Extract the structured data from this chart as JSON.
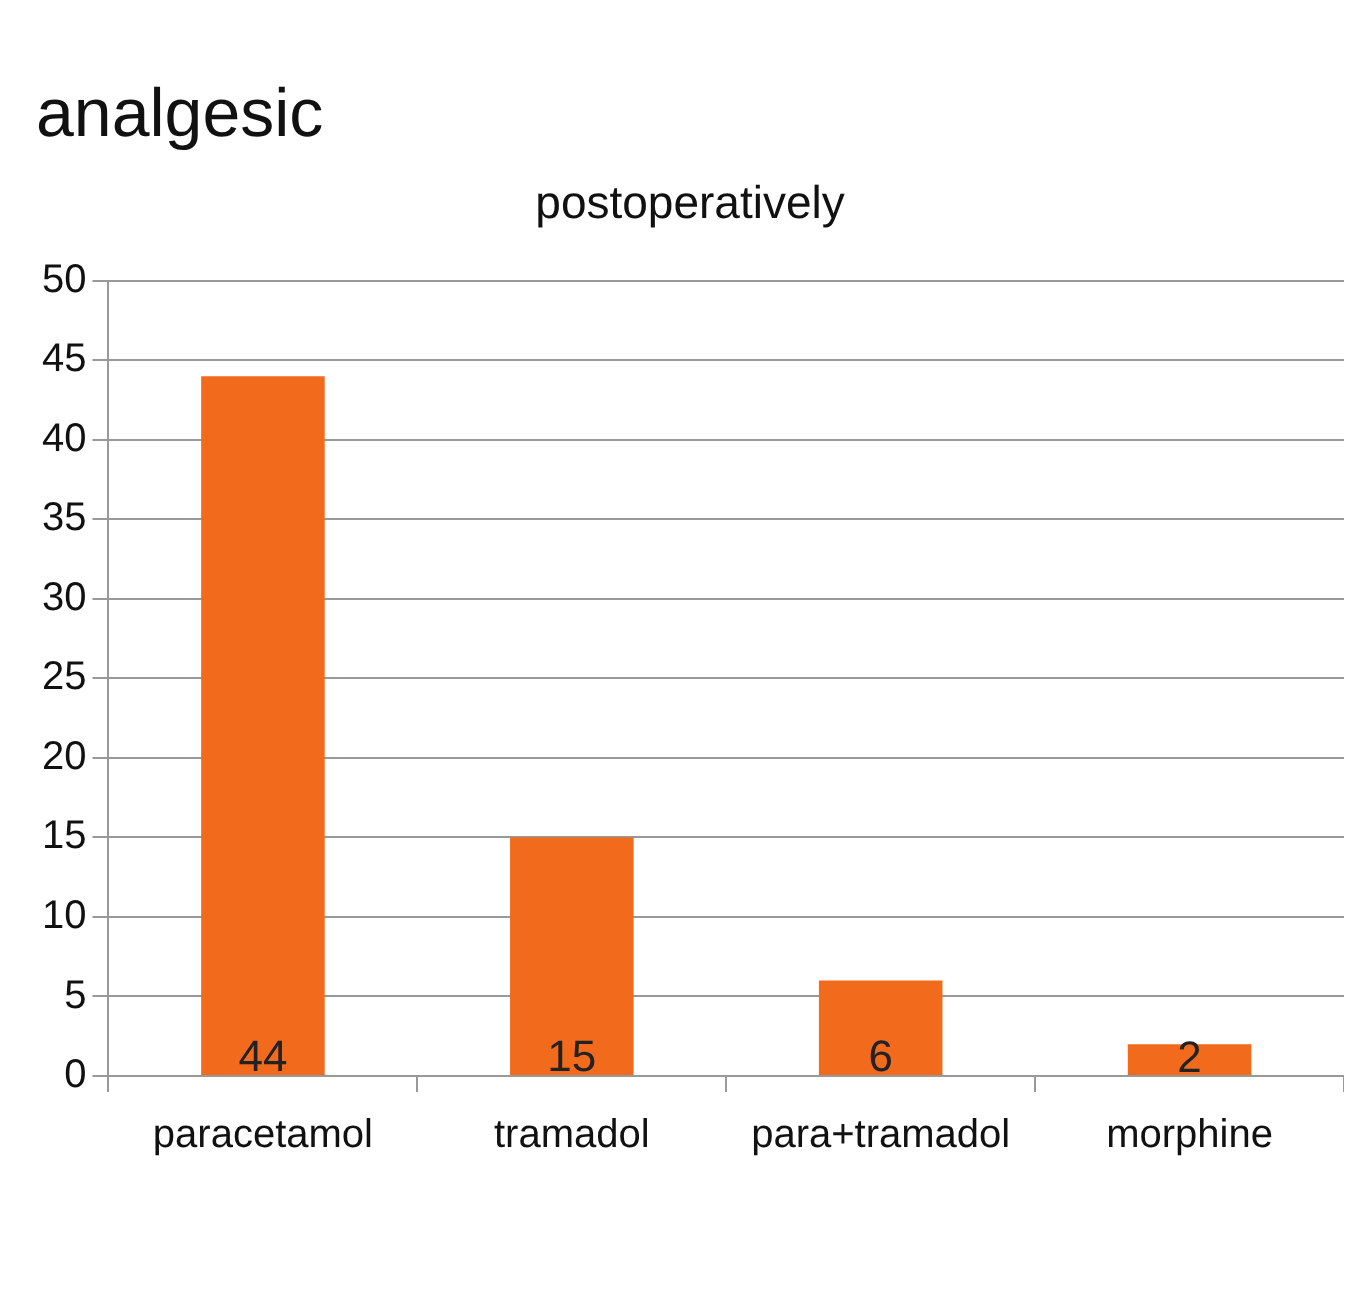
{
  "chart_data": {
    "type": "bar",
    "title": "analgesic",
    "subtitle": "postoperatively",
    "categories": [
      "paracetamol",
      "tramadol",
      "para+tramadol",
      "morphine"
    ],
    "values": [
      44,
      15,
      6,
      2
    ],
    "color": "#f26b1d",
    "ylim": [
      0,
      50
    ],
    "yticks": [
      0,
      5,
      10,
      15,
      20,
      25,
      30,
      35,
      40,
      45,
      50
    ],
    "grid": "y",
    "legend": false,
    "data_labels": true
  }
}
